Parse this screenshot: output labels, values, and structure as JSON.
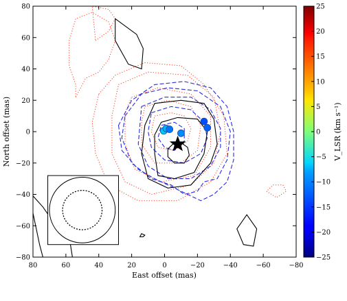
{
  "chart_data": {
    "type": "scatter",
    "xlabel": "East offset (mas)",
    "ylabel": "North offset (mas)",
    "xlim": [
      80,
      -80
    ],
    "ylim": [
      -80,
      80
    ],
    "x_ticks": [
      80,
      60,
      40,
      20,
      0,
      -20,
      -40,
      -60,
      -80
    ],
    "x_tick_labels": [
      "80",
      "60",
      "40",
      "20",
      "0",
      "−20",
      "−40",
      "−60",
      "−80"
    ],
    "y_ticks": [
      80,
      60,
      40,
      20,
      0,
      -20,
      -40,
      -60,
      -80
    ],
    "y_tick_labels": [
      "80",
      "60",
      "40",
      "20",
      "0",
      "−20",
      "−40",
      "−60",
      "−80"
    ],
    "colorbar": {
      "label": "V_LSR (km s⁻¹)",
      "range": [
        -25,
        25
      ],
      "ticks": [
        25,
        20,
        15,
        10,
        5,
        0,
        -5,
        -10,
        -15,
        -20,
        -25
      ],
      "tick_labels": [
        "25",
        "20",
        "15",
        "10",
        "5",
        "0",
        "−5",
        "−10",
        "−15",
        "−20",
        "−25"
      ],
      "colormap": "jet"
    },
    "maser_spots": [
      {
        "x": 0.5,
        "y": 0.5,
        "v": -9
      },
      {
        "x": -1,
        "y": 2,
        "v": -10
      },
      {
        "x": -3,
        "y": 1.5,
        "v": -13
      },
      {
        "x": -10,
        "y": -1,
        "v": -12
      },
      {
        "x": -24,
        "y": 6.5,
        "v": -15
      },
      {
        "x": -26,
        "y": 2.5,
        "v": -14
      }
    ],
    "star_marker": {
      "x": -8,
      "y": -8
    },
    "beam": {
      "box_x": [
        71,
        28
      ],
      "box_y": [
        -28,
        -72
      ],
      "center": [
        50,
        -50
      ],
      "solid_radius": 20,
      "dashed_radius": 12
    },
    "contours": {
      "black_solid": [
        [
          [
            -5,
            -8
          ],
          [
            -10,
            -7
          ],
          [
            -14,
            -10
          ],
          [
            -15,
            -15
          ],
          [
            -12,
            -20
          ],
          [
            -6,
            -20
          ],
          [
            -2,
            -16
          ],
          [
            -2,
            -11
          ]
        ],
        [
          [
            2,
            6
          ],
          [
            -8,
            9
          ],
          [
            -20,
            8
          ],
          [
            -26,
            0
          ],
          [
            -24,
            -14
          ],
          [
            -18,
            -26
          ],
          [
            -6,
            -30
          ],
          [
            4,
            -28
          ],
          [
            6,
            -14
          ],
          [
            6,
            -2
          ]
        ],
        [
          [
            6,
            18
          ],
          [
            -10,
            20
          ],
          [
            -24,
            18
          ],
          [
            -30,
            8
          ],
          [
            -32,
            -8
          ],
          [
            -28,
            -20
          ],
          [
            -16,
            -34
          ],
          [
            -2,
            -36
          ],
          [
            10,
            -30
          ],
          [
            14,
            -14
          ],
          [
            12,
            4
          ]
        ],
        [
          [
            30,
            72
          ],
          [
            17,
            62
          ],
          [
            13,
            53
          ],
          [
            14,
            40
          ],
          [
            22,
            43
          ],
          [
            30,
            58
          ]
        ],
        [
          [
            -44,
            -62
          ],
          [
            -50,
            -53
          ],
          [
            -56,
            -62
          ],
          [
            -54,
            -73
          ],
          [
            -48,
            -72
          ]
        ],
        [
          [
            12,
            -66
          ],
          [
            14,
            -65
          ],
          [
            15,
            -67
          ],
          [
            13,
            -67
          ]
        ]
      ],
      "black_solid_open": [
        [
          [
            80,
            -41
          ],
          [
            74,
            -48
          ],
          [
            70,
            -54
          ],
          [
            66,
            -58
          ],
          [
            62,
            -60
          ],
          [
            58,
            -67
          ],
          [
            56,
            -80
          ]
        ],
        [
          [
            80,
            -52
          ],
          [
            78,
            -62
          ],
          [
            76,
            -72
          ],
          [
            74,
            -80
          ]
        ]
      ],
      "red_dotted": [
        [
          [
            6,
            10
          ],
          [
            -4,
            12
          ],
          [
            -12,
            10
          ],
          [
            -16,
            2
          ],
          [
            -14,
            -6
          ],
          [
            -6,
            -12
          ],
          [
            4,
            -10
          ],
          [
            8,
            0
          ]
        ],
        [
          [
            12,
            16
          ],
          [
            -2,
            20
          ],
          [
            -16,
            16
          ],
          [
            -22,
            4
          ],
          [
            -20,
            -12
          ],
          [
            -10,
            -20
          ],
          [
            6,
            -20
          ],
          [
            14,
            -8
          ],
          [
            14,
            6
          ]
        ],
        [
          [
            20,
            22
          ],
          [
            4,
            28
          ],
          [
            -16,
            24
          ],
          [
            -28,
            10
          ],
          [
            -28,
            -10
          ],
          [
            -18,
            -28
          ],
          [
            2,
            -32
          ],
          [
            18,
            -24
          ],
          [
            24,
            -8
          ],
          [
            24,
            12
          ]
        ],
        [
          [
            28,
            30
          ],
          [
            10,
            38
          ],
          [
            -14,
            36
          ],
          [
            -30,
            22
          ],
          [
            -34,
            0
          ],
          [
            -30,
            -20
          ],
          [
            -16,
            -34
          ],
          [
            8,
            -40
          ],
          [
            24,
            -32
          ],
          [
            32,
            -14
          ],
          [
            32,
            10
          ]
        ],
        [
          [
            40,
            24
          ],
          [
            30,
            36
          ],
          [
            12,
            44
          ],
          [
            -10,
            42
          ],
          [
            -24,
            30
          ],
          [
            -36,
            10
          ],
          [
            -38,
            -14
          ],
          [
            -28,
            -32
          ],
          [
            -8,
            -44
          ],
          [
            16,
            -44
          ],
          [
            34,
            -34
          ],
          [
            42,
            -14
          ],
          [
            44,
            6
          ]
        ],
        [
          [
            54,
            22
          ],
          [
            48,
            34
          ],
          [
            40,
            38
          ],
          [
            34,
            46
          ],
          [
            30,
            58
          ],
          [
            34,
            70
          ],
          [
            44,
            76
          ],
          [
            54,
            72
          ],
          [
            58,
            58
          ],
          [
            58,
            42
          ],
          [
            54,
            30
          ]
        ],
        [
          [
            42,
            58
          ],
          [
            34,
            64
          ],
          [
            30,
            72
          ],
          [
            34,
            78
          ],
          [
            44,
            80
          ]
        ],
        [
          [
            -62,
            -38
          ],
          [
            -68,
            -42
          ],
          [
            -74,
            -38
          ],
          [
            -72,
            -34
          ],
          [
            -66,
            -34
          ]
        ]
      ],
      "blue_dashed": [
        [
          [
            2,
            4
          ],
          [
            -6,
            6
          ],
          [
            -12,
            2
          ],
          [
            -12,
            -6
          ],
          [
            -6,
            -12
          ],
          [
            0,
            -10
          ],
          [
            4,
            -4
          ]
        ],
        [
          [
            8,
            12
          ],
          [
            -4,
            16
          ],
          [
            -16,
            14
          ],
          [
            -24,
            6
          ],
          [
            -26,
            -4
          ],
          [
            -22,
            -14
          ],
          [
            -12,
            -20
          ],
          [
            0,
            -18
          ],
          [
            8,
            -10
          ],
          [
            10,
            0
          ]
        ],
        [
          [
            14,
            16
          ],
          [
            0,
            22
          ],
          [
            -16,
            22
          ],
          [
            -28,
            14
          ],
          [
            -34,
            2
          ],
          [
            -34,
            -10
          ],
          [
            -28,
            -22
          ],
          [
            -16,
            -30
          ],
          [
            -2,
            -30
          ],
          [
            10,
            -22
          ],
          [
            16,
            -8
          ]
        ],
        [
          [
            24,
            10
          ],
          [
            14,
            24
          ],
          [
            -2,
            28
          ],
          [
            -20,
            26
          ],
          [
            -34,
            16
          ],
          [
            -40,
            0
          ],
          [
            -38,
            -18
          ],
          [
            -32,
            -30
          ],
          [
            -24,
            -32
          ],
          [
            -20,
            -38
          ],
          [
            -12,
            -40
          ],
          [
            -4,
            -34
          ],
          [
            8,
            -30
          ],
          [
            20,
            -20
          ],
          [
            26,
            -4
          ]
        ],
        [
          [
            28,
            4
          ],
          [
            26,
            -12
          ],
          [
            16,
            -24
          ],
          [
            6,
            -30
          ],
          [
            -6,
            -36
          ],
          [
            -14,
            -40
          ],
          [
            -22,
            -44
          ],
          [
            -30,
            -40
          ],
          [
            -38,
            -32
          ],
          [
            -42,
            -18
          ],
          [
            -42,
            0
          ],
          [
            -38,
            16
          ],
          [
            -28,
            28
          ],
          [
            -12,
            32
          ],
          [
            6,
            30
          ],
          [
            20,
            20
          ]
        ]
      ]
    }
  }
}
